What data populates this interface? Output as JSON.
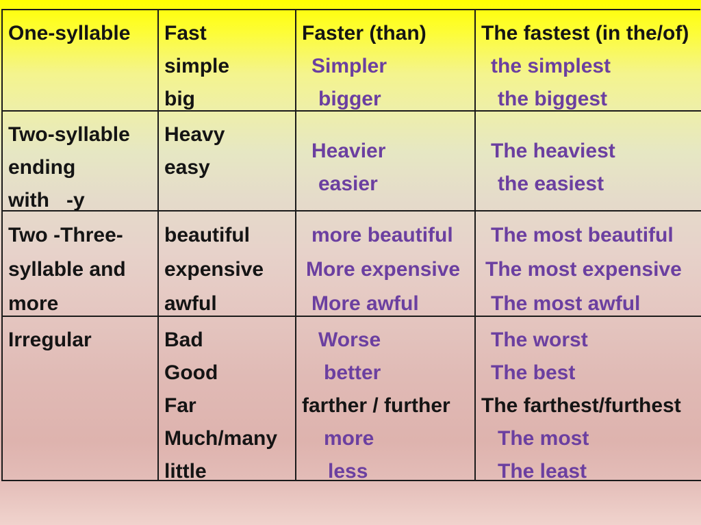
{
  "palette": {
    "text_black": "#141414",
    "text_purple": "#6b3fa0",
    "border": "#1a1a1a",
    "bg_top_yellow": "#ffff00",
    "bg_mid_beige": "#e5dbca",
    "bg_bottom_pink": "#f0d3cd"
  },
  "table": {
    "rows": [
      {
        "cells": [
          {
            "lines": [
              {
                "t": "One-syllable",
                "c": "black"
              }
            ]
          },
          {
            "lines": [
              {
                "t": "Fast",
                "c": "black"
              },
              {
                "t": "simple",
                "c": "black"
              },
              {
                "t": "big",
                "c": "black"
              }
            ]
          },
          {
            "lines": [
              {
                "t": "Faster (than)",
                "c": "black"
              },
              {
                "t": "Simpler",
                "c": "purple"
              },
              {
                "t": "bigger",
                "c": "purple"
              }
            ]
          },
          {
            "lines": [
              {
                "t": "The fastest (in the/of)",
                "c": "black"
              },
              {
                "t": "the simplest",
                "c": "purple"
              },
              {
                "t": "the biggest",
                "c": "purple"
              }
            ]
          }
        ]
      },
      {
        "cells": [
          {
            "lines": [
              {
                "t": "Two-syllable",
                "c": "black"
              },
              {
                "t": "ending",
                "c": "black"
              },
              {
                "t": "with   -y",
                "c": "black"
              }
            ]
          },
          {
            "lines": [
              {
                "t": "Heavy",
                "c": "black"
              },
              {
                "t": "easy",
                "c": "black"
              }
            ]
          },
          {
            "lines": [
              {
                "t": "Heavier",
                "c": "purple"
              },
              {
                "t": "easier",
                "c": "purple"
              }
            ]
          },
          {
            "lines": [
              {
                "t": "The heaviest",
                "c": "purple"
              },
              {
                "t": "the easiest",
                "c": "purple"
              }
            ]
          }
        ]
      },
      {
        "cells": [
          {
            "lines": [
              {
                "t": "Two -Three-",
                "c": "black"
              },
              {
                "t": "syllable and",
                "c": "black"
              },
              {
                "t": "more",
                "c": "black"
              }
            ]
          },
          {
            "lines": [
              {
                "t": "beautiful",
                "c": "black"
              },
              {
                "t": "expensive",
                "c": "black"
              },
              {
                "t": "awful",
                "c": "black"
              }
            ]
          },
          {
            "lines": [
              {
                "t": "more beautiful",
                "c": "purple"
              },
              {
                "t": "More expensive",
                "c": "purple"
              },
              {
                "t": "More awful",
                "c": "purple"
              }
            ]
          },
          {
            "lines": [
              {
                "t": "The most beautiful",
                "c": "purple"
              },
              {
                "t": "The most expensive",
                "c": "purple"
              },
              {
                "t": "The most awful",
                "c": "purple"
              }
            ]
          }
        ]
      },
      {
        "cells": [
          {
            "lines": [
              {
                "t": "Irregular",
                "c": "black"
              }
            ]
          },
          {
            "lines": [
              {
                "t": "Bad",
                "c": "black"
              },
              {
                "t": "Good",
                "c": "black"
              },
              {
                "t": "Far",
                "c": "black"
              },
              {
                "t": "Much/many",
                "c": "black"
              },
              {
                "t": "little",
                "c": "black"
              }
            ]
          },
          {
            "lines": [
              {
                "t": "Worse",
                "c": "purple"
              },
              {
                "t": "better",
                "c": "purple"
              },
              {
                "t": "farther / further",
                "c": "black"
              },
              {
                "t": "more",
                "c": "purple"
              },
              {
                "t": "less",
                "c": "purple"
              }
            ]
          },
          {
            "lines": [
              {
                "t": "The worst",
                "c": "purple"
              },
              {
                "t": "The best",
                "c": "purple"
              },
              {
                "t": "The farthest/furthest",
                "c": "black"
              },
              {
                "t": "The most",
                "c": "purple"
              },
              {
                "t": "The least",
                "c": "purple"
              }
            ]
          }
        ]
      }
    ]
  }
}
